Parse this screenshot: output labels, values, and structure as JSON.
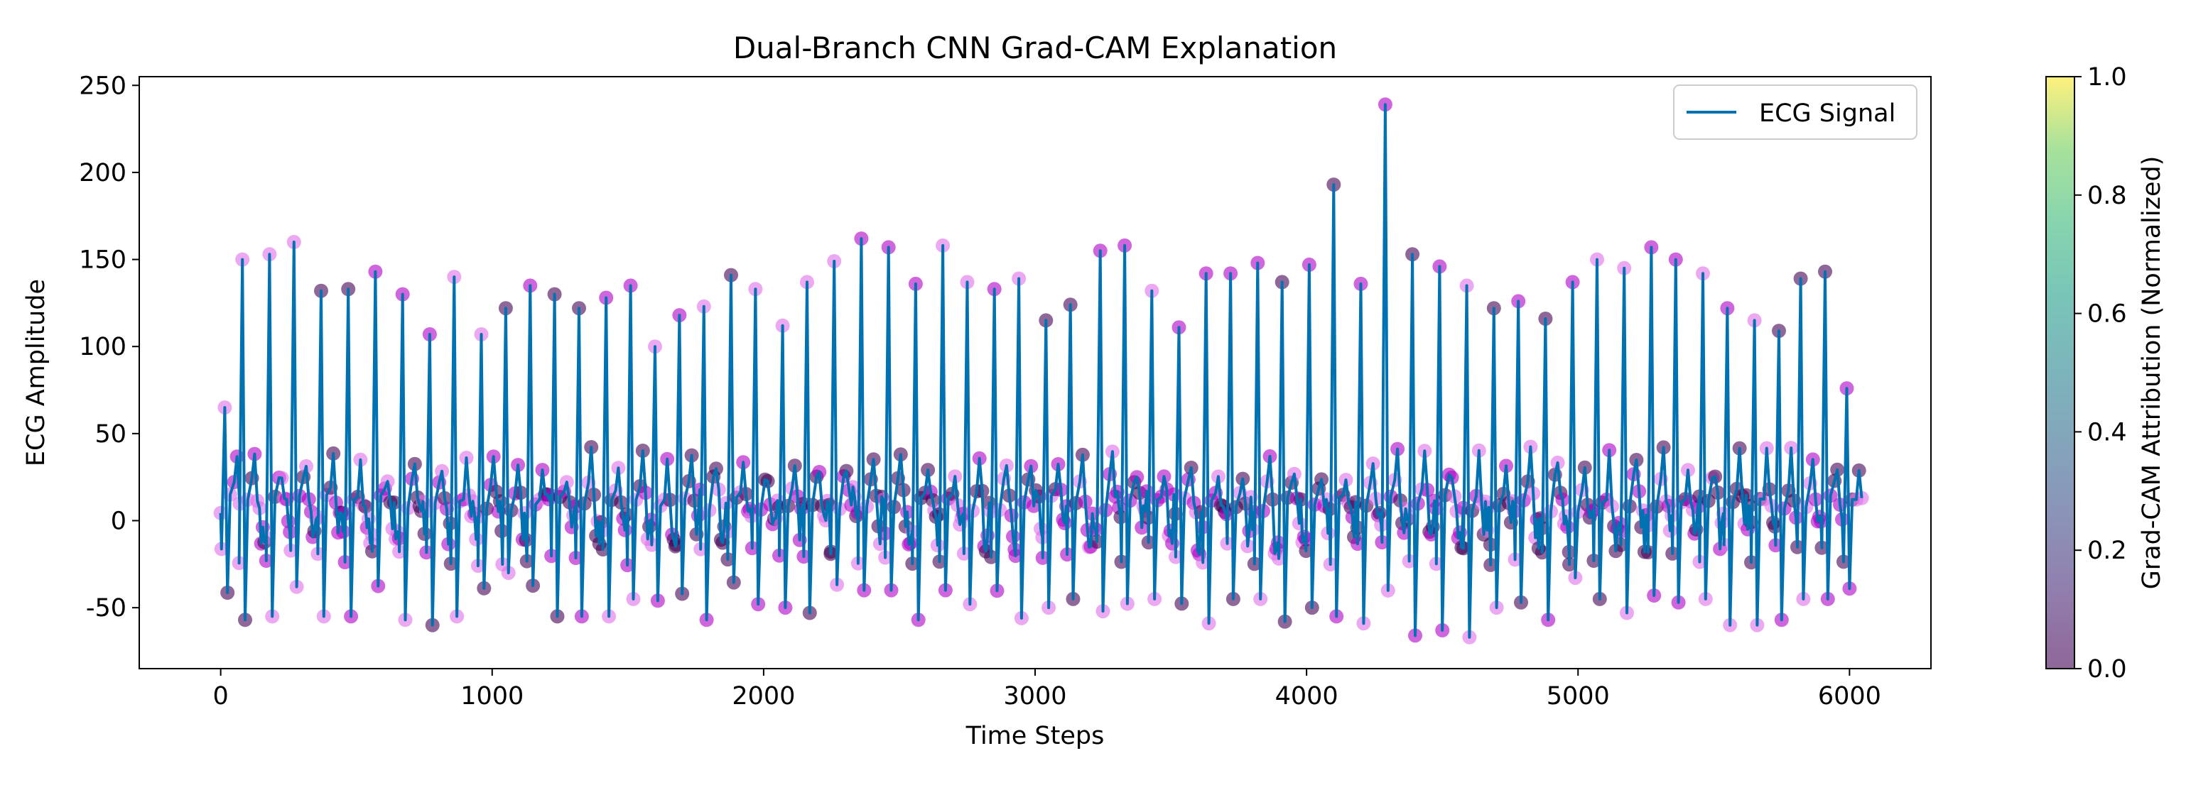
{
  "chart_data": {
    "type": "line",
    "title": "Dual-Branch CNN Grad-CAM Explanation",
    "xlabel": "Time Steps",
    "ylabel": "ECG Amplitude",
    "xlim": [
      -300,
      6300
    ],
    "ylim": [
      -85,
      255
    ],
    "x_ticks": [
      0,
      1000,
      2000,
      3000,
      4000,
      5000,
      6000
    ],
    "y_ticks": [
      -50,
      0,
      50,
      100,
      150,
      200,
      250
    ],
    "grid": false,
    "legend": {
      "position": "top-right",
      "entries": [
        "ECG Signal"
      ]
    },
    "series": [
      {
        "name": "ECG Signal",
        "color": "#0072b2",
        "baseline": 0,
        "beat_spacing": 96,
        "approximate_r_peaks": [
          {
            "x": 15,
            "y": 65
          },
          {
            "x": 80,
            "y": 150
          },
          {
            "x": 180,
            "y": 153
          },
          {
            "x": 270,
            "y": 160
          },
          {
            "x": 370,
            "y": 132
          },
          {
            "x": 470,
            "y": 133
          },
          {
            "x": 570,
            "y": 143
          },
          {
            "x": 670,
            "y": 130
          },
          {
            "x": 770,
            "y": 107
          },
          {
            "x": 860,
            "y": 140
          },
          {
            "x": 960,
            "y": 107
          },
          {
            "x": 1050,
            "y": 122
          },
          {
            "x": 1140,
            "y": 135
          },
          {
            "x": 1230,
            "y": 130
          },
          {
            "x": 1320,
            "y": 122
          },
          {
            "x": 1420,
            "y": 128
          },
          {
            "x": 1510,
            "y": 135
          },
          {
            "x": 1600,
            "y": 100
          },
          {
            "x": 1690,
            "y": 118
          },
          {
            "x": 1780,
            "y": 123
          },
          {
            "x": 1880,
            "y": 141
          },
          {
            "x": 1970,
            "y": 133
          },
          {
            "x": 2070,
            "y": 112
          },
          {
            "x": 2160,
            "y": 137
          },
          {
            "x": 2260,
            "y": 149
          },
          {
            "x": 2360,
            "y": 162
          },
          {
            "x": 2460,
            "y": 157
          },
          {
            "x": 2560,
            "y": 136
          },
          {
            "x": 2660,
            "y": 158
          },
          {
            "x": 2750,
            "y": 137
          },
          {
            "x": 2850,
            "y": 133
          },
          {
            "x": 2940,
            "y": 139
          },
          {
            "x": 3040,
            "y": 115
          },
          {
            "x": 3130,
            "y": 124
          },
          {
            "x": 3240,
            "y": 155
          },
          {
            "x": 3330,
            "y": 158
          },
          {
            "x": 3430,
            "y": 132
          },
          {
            "x": 3530,
            "y": 111
          },
          {
            "x": 3630,
            "y": 142
          },
          {
            "x": 3720,
            "y": 142
          },
          {
            "x": 3820,
            "y": 148
          },
          {
            "x": 3910,
            "y": 137
          },
          {
            "x": 4010,
            "y": 147
          },
          {
            "x": 4100,
            "y": 193
          },
          {
            "x": 4200,
            "y": 136
          },
          {
            "x": 4290,
            "y": 239
          },
          {
            "x": 4390,
            "y": 153
          },
          {
            "x": 4490,
            "y": 146
          },
          {
            "x": 4590,
            "y": 135
          },
          {
            "x": 4690,
            "y": 122
          },
          {
            "x": 4780,
            "y": 126
          },
          {
            "x": 4880,
            "y": 116
          },
          {
            "x": 4980,
            "y": 137
          },
          {
            "x": 5070,
            "y": 150
          },
          {
            "x": 5170,
            "y": 145
          },
          {
            "x": 5270,
            "y": 157
          },
          {
            "x": 5360,
            "y": 150
          },
          {
            "x": 5460,
            "y": 142
          },
          {
            "x": 5550,
            "y": 122
          },
          {
            "x": 5650,
            "y": 115
          },
          {
            "x": 5740,
            "y": 109
          },
          {
            "x": 5820,
            "y": 139
          },
          {
            "x": 5910,
            "y": 143
          },
          {
            "x": 5990,
            "y": 76
          }
        ],
        "approximate_s_troughs": [
          {
            "x": 90,
            "y": -57
          },
          {
            "x": 190,
            "y": -55
          },
          {
            "x": 280,
            "y": -38
          },
          {
            "x": 380,
            "y": -55
          },
          {
            "x": 480,
            "y": -55
          },
          {
            "x": 680,
            "y": -57
          },
          {
            "x": 780,
            "y": -60
          },
          {
            "x": 870,
            "y": -55
          },
          {
            "x": 1060,
            "y": -30
          },
          {
            "x": 1240,
            "y": -55
          },
          {
            "x": 1330,
            "y": -55
          },
          {
            "x": 1430,
            "y": -55
          },
          {
            "x": 1520,
            "y": -45
          },
          {
            "x": 1700,
            "y": -42
          },
          {
            "x": 1790,
            "y": -57
          },
          {
            "x": 1980,
            "y": -48
          },
          {
            "x": 2080,
            "y": -50
          },
          {
            "x": 2170,
            "y": -53
          },
          {
            "x": 2370,
            "y": -40
          },
          {
            "x": 2470,
            "y": -40
          },
          {
            "x": 2570,
            "y": -57
          },
          {
            "x": 2670,
            "y": -40
          },
          {
            "x": 2760,
            "y": -48
          },
          {
            "x": 2960,
            "y": -56
          },
          {
            "x": 3050,
            "y": -50
          },
          {
            "x": 3150,
            "y": -45
          },
          {
            "x": 3250,
            "y": -52
          },
          {
            "x": 3440,
            "y": -45
          },
          {
            "x": 3640,
            "y": -59
          },
          {
            "x": 3730,
            "y": -45
          },
          {
            "x": 3830,
            "y": -45
          },
          {
            "x": 3920,
            "y": -58
          },
          {
            "x": 4020,
            "y": -50
          },
          {
            "x": 4110,
            "y": -55
          },
          {
            "x": 4210,
            "y": -59
          },
          {
            "x": 4400,
            "y": -66
          },
          {
            "x": 4500,
            "y": -63
          },
          {
            "x": 4600,
            "y": -67
          },
          {
            "x": 4700,
            "y": -50
          },
          {
            "x": 4790,
            "y": -47
          },
          {
            "x": 4890,
            "y": -57
          },
          {
            "x": 5080,
            "y": -45
          },
          {
            "x": 5180,
            "y": -53
          },
          {
            "x": 5280,
            "y": -43
          },
          {
            "x": 5370,
            "y": -47
          },
          {
            "x": 5470,
            "y": -45
          },
          {
            "x": 5560,
            "y": -60
          },
          {
            "x": 5660,
            "y": -60
          },
          {
            "x": 5750,
            "y": -57
          },
          {
            "x": 5840,
            "y": -45
          },
          {
            "x": 5930,
            "y": -45
          }
        ]
      }
    ],
    "attribution_overlay": {
      "type": "scatter",
      "colormap": "viridis",
      "alpha": 0.6,
      "observed_attribution_range": [
        0.0,
        0.12
      ],
      "colors": [
        "#440154",
        "#b000c8",
        "#e070e8"
      ]
    },
    "colorbar": {
      "label": "Grad-CAM Attribution (Normalized)",
      "range": [
        0.0,
        1.0
      ],
      "ticks": [
        "0.0",
        "0.2",
        "0.4",
        "0.6",
        "0.8",
        "1.0"
      ],
      "colormap": "viridis",
      "alpha": 0.6
    }
  }
}
